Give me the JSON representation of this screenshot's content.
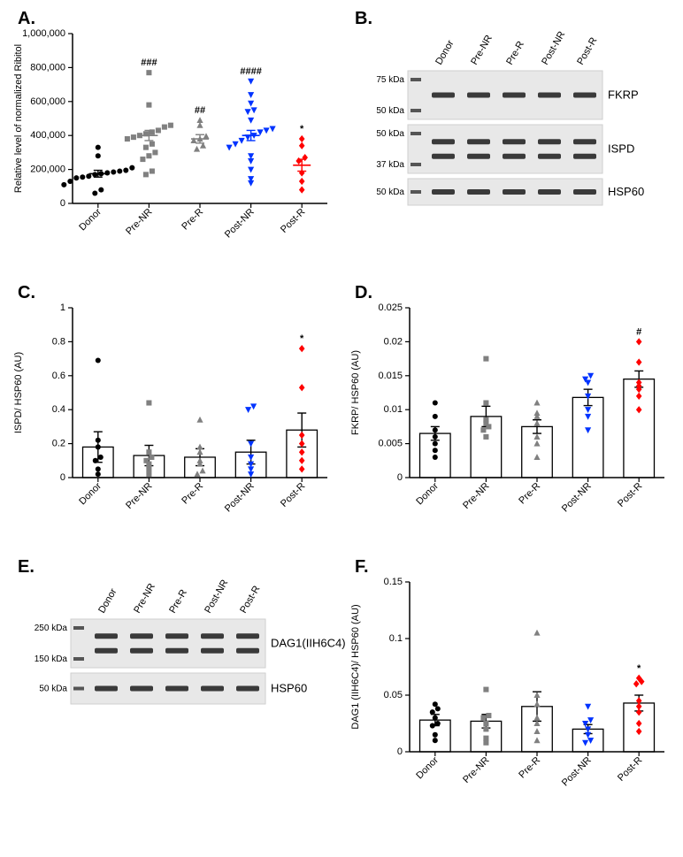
{
  "panels": {
    "A": {
      "label": "A."
    },
    "B": {
      "label": "B."
    },
    "C": {
      "label": "C."
    },
    "D": {
      "label": "D."
    },
    "E": {
      "label": "E."
    },
    "F": {
      "label": "F."
    }
  },
  "categories": [
    "Donor",
    "Pre-NR",
    "Pre-R",
    "Post-NR",
    "Post-R"
  ],
  "colors": {
    "donor": "#000000",
    "preNR": "#808080",
    "preR": "#808080",
    "postNR": "#0033ff",
    "postR": "#ff0000",
    "axis": "#000000",
    "bar_outline": "#000000",
    "error_bar": "#000000",
    "blot_shade": "#e8e8e8",
    "blot_border": "#cfcfcf",
    "band": "#3a3a3a"
  },
  "chartA": {
    "type": "scatter",
    "ylabel": "Relative level of normalized Ribitol",
    "ylim": [
      0,
      1000000
    ],
    "ytick_step": 200000,
    "groups": [
      {
        "name": "Donor",
        "color": "#000000",
        "marker": "circle",
        "mean": 175000,
        "err": 20000,
        "points": [
          60000,
          80000,
          110000,
          130000,
          150000,
          155000,
          160000,
          170000,
          175000,
          180000,
          185000,
          190000,
          195000,
          210000,
          280000,
          330000
        ]
      },
      {
        "name": "Pre-NR",
        "color": "#808080",
        "marker": "square",
        "mean": 400000,
        "err": 30000,
        "points": [
          170000,
          190000,
          260000,
          280000,
          300000,
          330000,
          350000,
          380000,
          390000,
          400000,
          410000,
          420000,
          430000,
          450000,
          460000,
          580000,
          770000
        ],
        "sig": "###"
      },
      {
        "name": "Pre-R",
        "color": "#808080",
        "marker": "triangle-up",
        "mean": 380000,
        "err": 25000,
        "points": [
          320000,
          340000,
          370000,
          380000,
          395000,
          460000,
          490000
        ],
        "sig": "##"
      },
      {
        "name": "Post-NR",
        "color": "#0033ff",
        "marker": "triangle-down",
        "mean": 400000,
        "err": 30000,
        "points": [
          120000,
          145000,
          200000,
          250000,
          280000,
          330000,
          350000,
          370000,
          390000,
          400000,
          420000,
          430000,
          440000,
          490000,
          540000,
          550000,
          590000,
          640000,
          720000
        ],
        "sig": "####"
      },
      {
        "name": "Post-R",
        "color": "#ff0000",
        "marker": "diamond",
        "mean": 225000,
        "err": 35000,
        "points": [
          80000,
          130000,
          180000,
          250000,
          270000,
          340000,
          380000
        ],
        "sig": "*"
      }
    ]
  },
  "chartC": {
    "type": "bar",
    "ylabel": "ISPD/ HSP60 (AU)",
    "ylim": [
      0,
      1.0
    ],
    "ytick_step": 0.2,
    "groups": [
      {
        "name": "Donor",
        "color": "#000000",
        "marker": "circle",
        "mean": 0.18,
        "err": 0.09,
        "points": [
          0.02,
          0.05,
          0.1,
          0.12,
          0.18,
          0.22,
          0.69
        ]
      },
      {
        "name": "Pre-NR",
        "color": "#808080",
        "marker": "square",
        "mean": 0.13,
        "err": 0.06,
        "points": [
          0.02,
          0.05,
          0.08,
          0.1,
          0.12,
          0.15,
          0.44
        ]
      },
      {
        "name": "Pre-R",
        "color": "#808080",
        "marker": "triangle-up",
        "mean": 0.12,
        "err": 0.05,
        "points": [
          0.02,
          0.04,
          0.08,
          0.1,
          0.15,
          0.18,
          0.34
        ]
      },
      {
        "name": "Post-NR",
        "color": "#0033ff",
        "marker": "triangle-down",
        "mean": 0.15,
        "err": 0.07,
        "points": [
          0.02,
          0.05,
          0.08,
          0.12,
          0.2,
          0.4,
          0.42
        ]
      },
      {
        "name": "Post-R",
        "color": "#ff0000",
        "marker": "diamond",
        "mean": 0.28,
        "err": 0.1,
        "points": [
          0.05,
          0.1,
          0.15,
          0.2,
          0.25,
          0.53,
          0.76
        ],
        "sig": "*"
      }
    ]
  },
  "chartD": {
    "type": "bar",
    "ylabel": "FKRP/ HSP60 (AU)",
    "ylim": [
      0,
      0.025
    ],
    "ytick_step": 0.005,
    "groups": [
      {
        "name": "Donor",
        "color": "#000000",
        "marker": "circle",
        "mean": 0.0065,
        "err": 0.001,
        "points": [
          0.003,
          0.004,
          0.005,
          0.006,
          0.007,
          0.009,
          0.011
        ]
      },
      {
        "name": "Pre-NR",
        "color": "#808080",
        "marker": "square",
        "mean": 0.009,
        "err": 0.0015,
        "points": [
          0.006,
          0.007,
          0.0075,
          0.008,
          0.0085,
          0.011,
          0.0175
        ]
      },
      {
        "name": "Pre-R",
        "color": "#808080",
        "marker": "triangle-up",
        "mean": 0.0075,
        "err": 0.001,
        "points": [
          0.003,
          0.005,
          0.006,
          0.008,
          0.009,
          0.0095,
          0.011
        ]
      },
      {
        "name": "Post-NR",
        "color": "#0033ff",
        "marker": "triangle-down",
        "mean": 0.0118,
        "err": 0.0012,
        "points": [
          0.007,
          0.009,
          0.01,
          0.012,
          0.014,
          0.0145,
          0.015
        ]
      },
      {
        "name": "Post-R",
        "color": "#ff0000",
        "marker": "diamond",
        "mean": 0.0145,
        "err": 0.0012,
        "points": [
          0.01,
          0.012,
          0.013,
          0.0135,
          0.014,
          0.017,
          0.02
        ],
        "sig": "#"
      }
    ]
  },
  "chartF": {
    "type": "bar",
    "ylabel": "DAG1 (IIH6C4)/ HSP60 (AU)",
    "ylim": [
      0,
      0.15
    ],
    "ytick_step": 0.05,
    "groups": [
      {
        "name": "Donor",
        "color": "#000000",
        "marker": "circle",
        "mean": 0.028,
        "err": 0.005,
        "points": [
          0.01,
          0.015,
          0.023,
          0.025,
          0.03,
          0.035,
          0.038,
          0.042
        ]
      },
      {
        "name": "Pre-NR",
        "color": "#808080",
        "marker": "square",
        "mean": 0.027,
        "err": 0.006,
        "points": [
          0.008,
          0.012,
          0.02,
          0.025,
          0.03,
          0.032,
          0.055
        ]
      },
      {
        "name": "Pre-R",
        "color": "#808080",
        "marker": "triangle-up",
        "mean": 0.04,
        "err": 0.013,
        "points": [
          0.01,
          0.018,
          0.025,
          0.03,
          0.042,
          0.05,
          0.105
        ]
      },
      {
        "name": "Post-NR",
        "color": "#0033ff",
        "marker": "triangle-down",
        "mean": 0.02,
        "err": 0.004,
        "points": [
          0.008,
          0.01,
          0.015,
          0.02,
          0.025,
          0.028,
          0.04
        ]
      },
      {
        "name": "Post-R",
        "color": "#ff0000",
        "marker": "diamond",
        "mean": 0.043,
        "err": 0.007,
        "points": [
          0.018,
          0.025,
          0.035,
          0.04,
          0.045,
          0.06,
          0.062,
          0.065
        ],
        "sig": "*"
      }
    ]
  },
  "blotB": {
    "lanes": [
      "Donor",
      "Pre-NR",
      "Pre-R",
      "Post-NR",
      "Post-R"
    ],
    "rows": [
      {
        "label": "FKRP",
        "mw": [
          "75 kDa",
          "50 kDa"
        ],
        "bands_per_lane": 1,
        "height": 55
      },
      {
        "label": "ISPD",
        "mw": [
          "50 kDa",
          "37 kDa"
        ],
        "bands_per_lane": 2,
        "height": 55
      },
      {
        "label": "HSP60",
        "mw": [
          "50 kDa"
        ],
        "bands_per_lane": 1,
        "height": 30
      }
    ]
  },
  "blotE": {
    "lanes": [
      "Donor",
      "Pre-NR",
      "Pre-R",
      "Post-NR",
      "Post-R"
    ],
    "rows": [
      {
        "label": "DAG1(IIH6C4)",
        "mw": [
          "250 kDa",
          "150 kDa"
        ],
        "bands_per_lane": 2,
        "height": 55
      },
      {
        "label": "HSP60",
        "mw": [
          "50 kDa"
        ],
        "bands_per_lane": 1,
        "height": 35
      }
    ]
  }
}
